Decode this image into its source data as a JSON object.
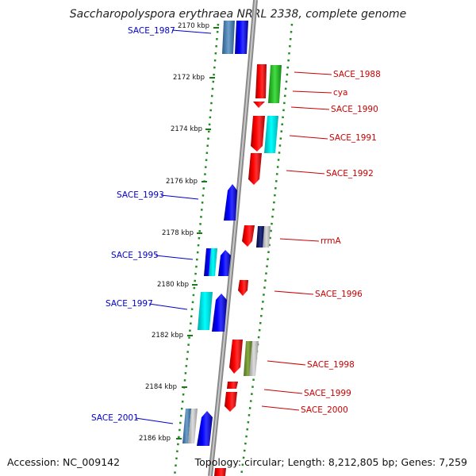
{
  "title": "Saccharopolyspora erythraea NRRL 2338, complete genome",
  "accession": "Accession: NC_009142",
  "topology": "Topology: circular; Length: 8,212,805 bp; Genes: 7,259",
  "ticks": [
    "2170 kbp",
    "2172 kbp",
    "2174 kbp",
    "2176 kbp",
    "2178 kbp",
    "2180 kbp",
    "2182 kbp",
    "2184 kbp",
    "2186 kbp"
  ],
  "colors": {
    "forward": "#0000ee",
    "reverse": "#ee0000",
    "backbone": "#888888",
    "track": "#228b22"
  },
  "genes_left": [
    {
      "label": "SACE_1987",
      "color": "#0000cc"
    },
    {
      "label": "SACE_1993",
      "color": "#0000cc"
    },
    {
      "label": "SACE_1995",
      "color": "#0000cc"
    },
    {
      "label": "SACE_1997",
      "color": "#0000cc"
    },
    {
      "label": "SACE_2001",
      "color": "#0000cc"
    }
  ],
  "genes_right": [
    {
      "label": "SACE_1988",
      "color": "#cc0000"
    },
    {
      "label": "cya",
      "color": "#cc0000"
    },
    {
      "label": "SACE_1990",
      "color": "#cc0000"
    },
    {
      "label": "SACE_1991",
      "color": "#cc0000"
    },
    {
      "label": "SACE_1992",
      "color": "#cc0000"
    },
    {
      "label": "rrmA",
      "color": "#cc0000"
    },
    {
      "label": "SACE_1996",
      "color": "#cc0000"
    },
    {
      "label": "SACE_1998",
      "color": "#cc0000"
    },
    {
      "label": "SACE_1999",
      "color": "#cc0000"
    },
    {
      "label": "SACE_2000",
      "color": "#cc0000"
    }
  ]
}
